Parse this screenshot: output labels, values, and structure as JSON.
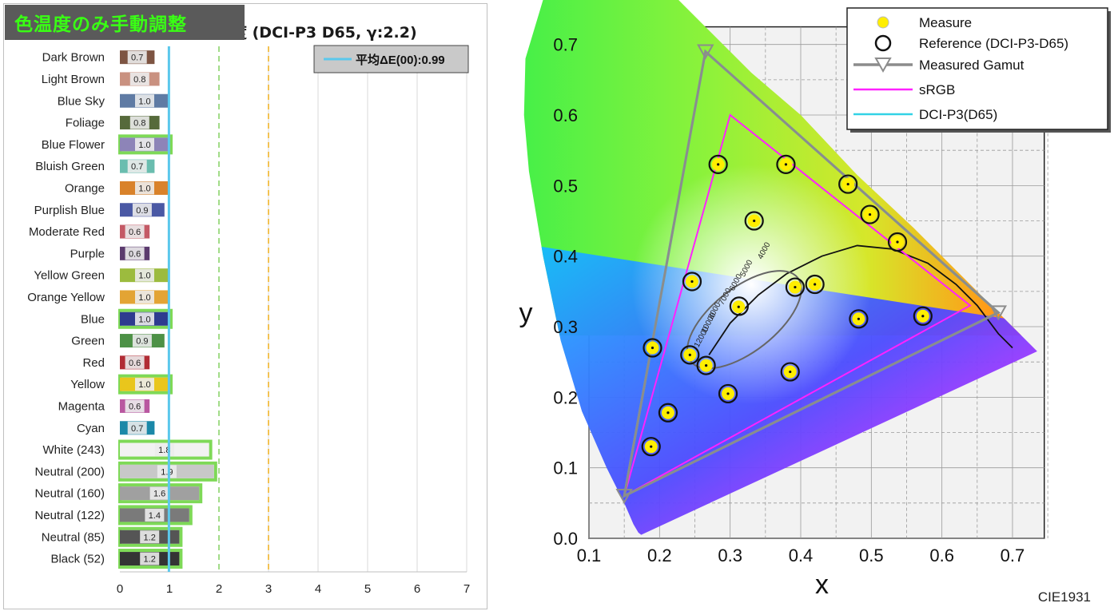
{
  "left": {
    "banner": "色温度のみ手動調整",
    "title": "度 (DCI-P3 D65, γ:2.2)"
  },
  "chart_data": [
    {
      "type": "bar",
      "orientation": "horizontal",
      "xlim": [
        0,
        7
      ],
      "x_ticks": [
        "0",
        "1",
        "2",
        "3",
        "4",
        "5",
        "6",
        "7"
      ],
      "legend": {
        "label": "平均ΔE(00):0.99",
        "position": "top-right"
      },
      "average_line": 0.99,
      "reference_lines": [
        2,
        3
      ],
      "categories": [
        "Dark Brown",
        "Light Brown",
        "Blue Sky",
        "Foliage",
        "Blue Flower",
        "Bluish Green",
        "Orange",
        "Purplish Blue",
        "Moderate Red",
        "Purple",
        "Yellow Green",
        "Orange Yellow",
        "Blue",
        "Green",
        "Red",
        "Yellow",
        "Magenta",
        "Cyan",
        "White (243)",
        "Neutral (200)",
        "Neutral (160)",
        "Neutral (122)",
        "Neutral (85)",
        "Black (52)"
      ],
      "values": [
        0.7,
        0.8,
        1.0,
        0.8,
        1.0,
        0.7,
        1.0,
        0.9,
        0.6,
        0.6,
        1.0,
        1.0,
        1.0,
        0.9,
        0.6,
        1.0,
        0.6,
        0.7,
        1.8,
        1.9,
        1.6,
        1.4,
        1.2,
        1.2
      ],
      "labels": [
        "0.7",
        "0.8",
        "1.0",
        "0.8",
        "1.0",
        "0.7",
        "1.0",
        "0.9",
        "0.6",
        "0.6",
        "1.0",
        "1.0",
        "1.0",
        "0.9",
        "0.6",
        "1.0",
        "0.6",
        "0.7",
        "1.8",
        "1.9",
        "1.6",
        "1.4",
        "1.2",
        "1.2"
      ],
      "colors": [
        "#7d5442",
        "#c99180",
        "#5f7ba4",
        "#566a3b",
        "#8d84b8",
        "#6abdaf",
        "#d9822a",
        "#4a58a4",
        "#c45965",
        "#5b3a6e",
        "#9cbb3e",
        "#e3a434",
        "#2e3b8f",
        "#4d9146",
        "#b12c35",
        "#e9c61c",
        "#b957a0",
        "#1b88a8",
        "#f2f2f2",
        "#c8c8c8",
        "#a0a0a0",
        "#7a7a7a",
        "#555555",
        "#343434"
      ],
      "highlighted": [
        false,
        false,
        false,
        false,
        true,
        false,
        false,
        false,
        false,
        false,
        false,
        false,
        true,
        false,
        false,
        true,
        false,
        false,
        true,
        true,
        true,
        true,
        true,
        true
      ]
    },
    {
      "type": "scatter",
      "title": "CIE1931",
      "xlabel": "x",
      "ylabel": "y",
      "xlim": [
        0.1,
        0.7
      ],
      "ylim": [
        0.0,
        0.7
      ],
      "x_ticks": [
        "0.1",
        "0.2",
        "0.3",
        "0.4",
        "0.5",
        "0.6",
        "0.7"
      ],
      "y_ticks": [
        "0.0",
        "0.1",
        "0.2",
        "0.3",
        "0.4",
        "0.5",
        "0.6",
        "0.7"
      ],
      "legend": [
        "Measure",
        "Reference (DCI-P3-D65)",
        "Measured Gamut",
        "sRGB",
        "DCI-P3(D65)"
      ],
      "cct_labels": [
        "4000",
        "5000",
        "6000",
        "7000",
        "8000",
        "10000",
        "12000"
      ],
      "series": [
        {
          "name": "Measure",
          "points": [
            [
              0.283,
              0.53
            ],
            [
              0.379,
              0.53
            ],
            [
              0.467,
              0.502
            ],
            [
              0.498,
              0.459
            ],
            [
              0.537,
              0.42
            ],
            [
              0.334,
              0.45
            ],
            [
              0.246,
              0.364
            ],
            [
              0.312,
              0.328
            ],
            [
              0.392,
              0.356
            ],
            [
              0.42,
              0.36
            ],
            [
              0.482,
              0.311
            ],
            [
              0.573,
              0.315
            ],
            [
              0.19,
              0.27
            ],
            [
              0.243,
              0.26
            ],
            [
              0.266,
              0.245
            ],
            [
              0.385,
              0.236
            ],
            [
              0.297,
              0.205
            ],
            [
              0.212,
              0.178
            ],
            [
              0.188,
              0.13
            ]
          ]
        },
        {
          "name": "Reference (DCI-P3-D65)",
          "points": [
            [
              0.283,
              0.53
            ],
            [
              0.379,
              0.53
            ],
            [
              0.467,
              0.502
            ],
            [
              0.498,
              0.459
            ],
            [
              0.537,
              0.42
            ],
            [
              0.334,
              0.45
            ],
            [
              0.246,
              0.364
            ],
            [
              0.3127,
              0.329
            ],
            [
              0.392,
              0.356
            ],
            [
              0.42,
              0.36
            ],
            [
              0.482,
              0.311
            ],
            [
              0.573,
              0.315
            ],
            [
              0.19,
              0.27
            ],
            [
              0.243,
              0.26
            ],
            [
              0.266,
              0.245
            ],
            [
              0.385,
              0.236
            ],
            [
              0.297,
              0.205
            ],
            [
              0.212,
              0.178
            ],
            [
              0.188,
              0.13
            ]
          ]
        },
        {
          "name": "Measured Gamut",
          "points": [
            [
              0.68,
              0.32
            ],
            [
              0.265,
              0.69
            ],
            [
              0.15,
              0.06
            ]
          ]
        },
        {
          "name": "sRGB",
          "points": [
            [
              0.64,
              0.33
            ],
            [
              0.3,
              0.6
            ],
            [
              0.15,
              0.06
            ]
          ]
        },
        {
          "name": "DCI-P3(D65)",
          "points": [
            [
              0.68,
              0.32
            ],
            [
              0.265,
              0.69
            ],
            [
              0.15,
              0.06
            ]
          ]
        }
      ]
    }
  ]
}
